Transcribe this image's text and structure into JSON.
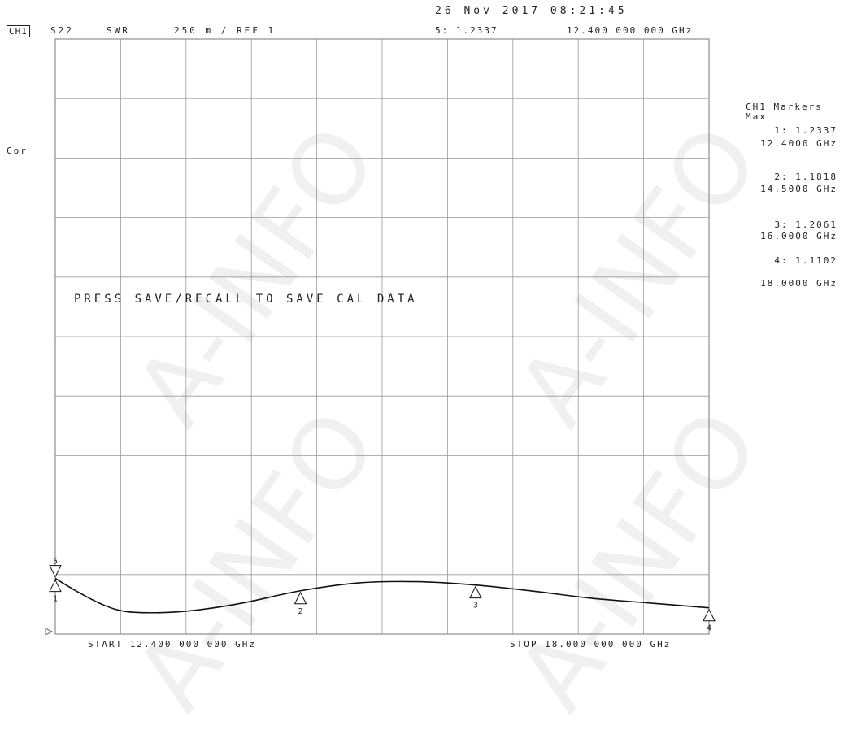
{
  "header": {
    "date_time": "26 Nov 2017 08:21:45",
    "channel": "CH1",
    "parameter": "S22",
    "format": "SWR",
    "scale_ref": "250 m / REF 1",
    "active_marker_readout": "5: 1.2337",
    "active_marker_freq": "12.400 000 000 GHz",
    "trace_label": "Cor"
  },
  "message": "PRESS SAVE/RECALL TO SAVE CAL DATA",
  "footer": {
    "start": "START 12.400 000 000 GHz",
    "stop": "STOP 18.000 000 000 GHz"
  },
  "marker_panel": {
    "title": "CH1 Markers",
    "mode": "Max",
    "markers": [
      {
        "id": "1",
        "value": "1: 1.2337",
        "freq": "12.4000 GHz"
      },
      {
        "id": "2",
        "value": "2: 1.1818",
        "freq": "14.5000 GHz"
      },
      {
        "id": "3",
        "value": "3: 1.2061",
        "freq": "16.0000 GHz"
      },
      {
        "id": "4",
        "value": "4: 1.1102",
        "freq": "18.0000 GHz"
      }
    ]
  },
  "watermark": "A-INFO",
  "chart_data": {
    "type": "line",
    "xlabel": "",
    "ylabel": "",
    "xlim": [
      12.4,
      18.0
    ],
    "ylim": [
      1.0,
      3.5
    ],
    "x_divisions": 10,
    "y_divisions": 10,
    "grid": true,
    "series": [
      {
        "x": [
          12.4,
          12.6,
          12.8,
          13.0,
          13.3,
          13.6,
          14.0,
          14.5,
          15.0,
          15.5,
          16.0,
          16.5,
          17.0,
          17.5,
          18.0
        ],
        "values": [
          1.2337,
          1.175,
          1.125,
          1.095,
          1.09,
          1.1,
          1.13,
          1.1818,
          1.215,
          1.22,
          1.2061,
          1.18,
          1.15,
          1.13,
          1.1102
        ]
      }
    ],
    "markers": [
      {
        "label": "1",
        "x": 12.4,
        "y": 1.2337
      },
      {
        "label": "2",
        "x": 14.5,
        "y": 1.1818
      },
      {
        "label": "3",
        "x": 16.0,
        "y": 1.2061
      },
      {
        "label": "4",
        "x": 18.0,
        "y": 1.1102
      },
      {
        "label": "5",
        "x": 12.4,
        "y": 1.2337
      }
    ]
  }
}
